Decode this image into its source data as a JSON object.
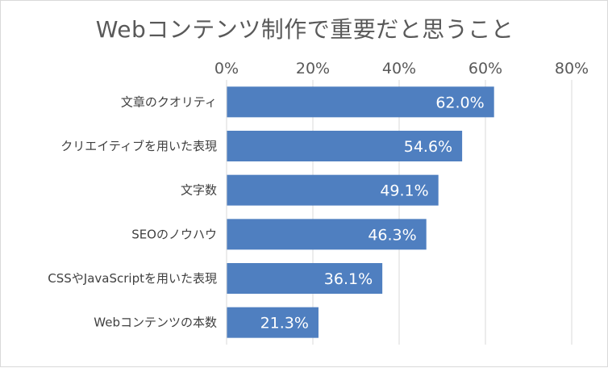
{
  "chart_data": {
    "type": "bar",
    "orientation": "horizontal",
    "title": "Webコンテンツ制作で重要だと思うこと",
    "categories": [
      "文章のクオリティ",
      "クリエイティブを用いた表現",
      "文字数",
      "SEOのノウハウ",
      "CSSやJavaScriptを用いた表現",
      "Webコンテンツの本数"
    ],
    "values": [
      62.0,
      54.6,
      49.1,
      46.3,
      36.1,
      21.3
    ],
    "data_labels": [
      "62.0%",
      "54.6%",
      "49.1%",
      "46.3%",
      "36.1%",
      "21.3%"
    ],
    "xlim": [
      0,
      80
    ],
    "xticks": [
      0,
      20,
      40,
      60,
      80
    ],
    "xtick_labels": [
      "0%",
      "20%",
      "40%",
      "60%",
      "80%"
    ],
    "axis_position": "top",
    "grid": true,
    "legend": "none",
    "colors": {
      "bar": "#4f7fc0",
      "grid": "#d9d9d9",
      "text": "#595959"
    }
  }
}
